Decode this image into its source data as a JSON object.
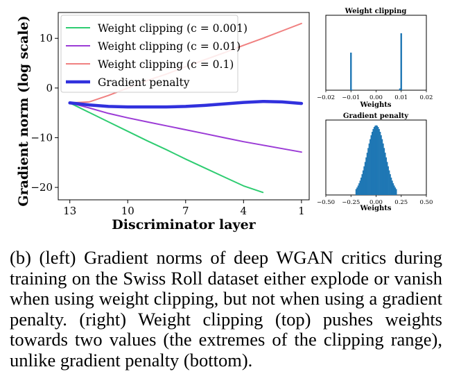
{
  "chart_data": [
    {
      "type": "line",
      "panel": "main",
      "title": "",
      "xlabel": "Discriminator layer",
      "ylabel": "Gradient norm (log scale)",
      "xlim": [
        13.6,
        0.6
      ],
      "ylim": [
        -22.5,
        15.2
      ],
      "xticks": [
        13,
        10,
        7,
        4,
        1
      ],
      "xtick_labels": [
        "13",
        "10",
        "7",
        "4",
        "1"
      ],
      "yticks": [
        10,
        0,
        -10,
        -20
      ],
      "ytick_labels": [
        "10",
        "0",
        "−10",
        "−20"
      ],
      "legend_position": "top-left",
      "series": [
        {
          "name": "Weight clipping (c = 0.001)",
          "color": "#2ecc71",
          "width": 2,
          "x": [
            13,
            12,
            11,
            10,
            9,
            8,
            7,
            6,
            5,
            4,
            3
          ],
          "y": [
            -3.0,
            -4.9,
            -6.8,
            -8.7,
            -10.6,
            -12.4,
            -14.3,
            -16.1,
            -17.9,
            -19.7,
            -21.0
          ]
        },
        {
          "name": "Weight clipping (c = 0.01)",
          "color": "#9b3bd6",
          "width": 2,
          "x": [
            13,
            12,
            11,
            10,
            9,
            8,
            7,
            6,
            5,
            4,
            3,
            2,
            1
          ],
          "y": [
            -3.0,
            -4.0,
            -5.1,
            -6.0,
            -6.8,
            -7.6,
            -8.4,
            -9.2,
            -10.0,
            -10.8,
            -11.5,
            -12.2,
            -12.9
          ]
        },
        {
          "name": "Weight clipping (c = 0.1)",
          "color": "#f08080",
          "width": 2,
          "x": [
            13,
            12,
            11,
            10,
            9,
            8,
            7,
            6,
            5,
            4,
            3,
            2,
            1
          ],
          "y": [
            -3.0,
            -2.8,
            -1.5,
            0.0,
            1.5,
            2.8,
            4.3,
            5.7,
            7.1,
            8.6,
            10.0,
            11.5,
            13.0
          ]
        },
        {
          "name": "Gradient penalty",
          "color": "#3131dd",
          "width": 4.5,
          "x": [
            13,
            12,
            11,
            10,
            9,
            8,
            7,
            6,
            5,
            4,
            3,
            2,
            1
          ],
          "y": [
            -3.0,
            -3.4,
            -3.7,
            -3.8,
            -3.8,
            -3.8,
            -3.7,
            -3.5,
            -3.2,
            -2.9,
            -2.7,
            -2.8,
            -3.1
          ]
        }
      ]
    },
    {
      "type": "histogram",
      "panel": "top-right",
      "title": "Weight clipping",
      "xlabel": "Weights",
      "xlim": [
        -0.02,
        0.02
      ],
      "xticks": [
        -0.02,
        -0.01,
        0.0,
        0.01,
        0.02
      ],
      "xtick_labels": [
        "−0.02",
        "−0.01",
        "0.00",
        "0.01",
        "0.02"
      ],
      "color": "#1f77b4",
      "bins": [
        {
          "x": -0.01,
          "count": 0.66
        },
        {
          "x": -0.0095,
          "count": 0.01
        },
        {
          "x": 0.0095,
          "count": 0.03
        },
        {
          "x": 0.01,
          "count": 1.0
        }
      ]
    },
    {
      "type": "histogram",
      "panel": "bottom-right",
      "title": "Gradient penalty",
      "xlabel": "Weights",
      "xlim": [
        -0.5,
        0.5
      ],
      "xticks": [
        -0.5,
        -0.25,
        0.0,
        0.25,
        0.5
      ],
      "xtick_labels": [
        "−0.50",
        "−0.25",
        "0.00",
        "0.25",
        "0.50"
      ],
      "color": "#1f77b4",
      "distribution": {
        "mean": 0.0,
        "std": 0.09,
        "clip": 0.2
      }
    }
  ],
  "caption": "(b) (left) Gradient norms of deep WGAN critics during training on the Swiss Roll dataset either explode or vanish when using weight clipping, but not when using a gradient penalty. (right) Weight clipping (top) pushes weights towards two values (the extremes of the clipping range), unlike gradient penalty (bottom)."
}
